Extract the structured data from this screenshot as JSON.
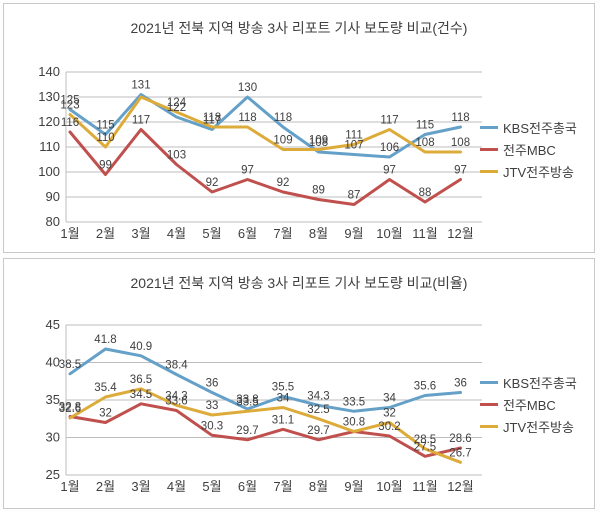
{
  "colors": {
    "kbs": "#64a0c8",
    "mbc": "#c0504d",
    "jtv": "#ddab39",
    "grid": "#bdbdbd",
    "axis_text": "#3f3f3f",
    "label_text": "#404040",
    "panel_border": "#c9c9c9"
  },
  "chart_data": [
    {
      "type": "line",
      "title": "2021년 전북 지역 방송 3사 리포트 기사 보도량 비교(건수)",
      "categories": [
        "1월",
        "2월",
        "3월",
        "4월",
        "5월",
        "6월",
        "7월",
        "8월",
        "9월",
        "10월",
        "11월",
        "12월"
      ],
      "ylim": [
        80,
        140
      ],
      "ytick_step": 10,
      "grid": true,
      "legend_position": "right",
      "series": [
        {
          "name": "KBS전주총국",
          "color_key": "kbs",
          "values": [
            125,
            115,
            131,
            122,
            117,
            130,
            118,
            108,
            107,
            106,
            115,
            118
          ],
          "labels": [
            "125",
            "115",
            "131",
            "122",
            "117",
            "130",
            "118",
            "108",
            "107",
            "106",
            "115",
            "118"
          ]
        },
        {
          "name": "전주MBC",
          "color_key": "mbc",
          "values": [
            116,
            99,
            117,
            103,
            92,
            97,
            92,
            89,
            87,
            97,
            88,
            97
          ],
          "labels": [
            "116",
            "99",
            "117",
            "103",
            "92",
            "97",
            "92",
            "89",
            "87",
            "97",
            "88",
            "97"
          ]
        },
        {
          "name": "JTV전주방송",
          "color_key": "jtv",
          "values": [
            123,
            110,
            130,
            124,
            118,
            118,
            109,
            109,
            111,
            117,
            108,
            108
          ],
          "labels": [
            "123",
            "110",
            "",
            "124",
            "118",
            "118",
            "109",
            "109",
            "111",
            "117",
            "108",
            "108"
          ]
        }
      ]
    },
    {
      "type": "line",
      "title": "2021년 전북 지역 방송 3사 리포트 기사 보도량 비교(비율)",
      "categories": [
        "1월",
        "2월",
        "3월",
        "4월",
        "5월",
        "6월",
        "7월",
        "8월",
        "9월",
        "10월",
        "11월",
        "12월"
      ],
      "ylim": [
        25,
        45
      ],
      "ytick_step": 5,
      "grid": true,
      "legend_position": "right",
      "series": [
        {
          "name": "KBS전주총국",
          "color_key": "kbs",
          "values": [
            38.5,
            41.8,
            40.9,
            38.4,
            36,
            33.8,
            35.5,
            34.3,
            33.5,
            34,
            35.6,
            36
          ],
          "labels": [
            "38.5",
            "41.8",
            "40.9",
            "38.4",
            "36",
            "33.8",
            "35.5",
            "34.3",
            "33.5",
            "34",
            "35.6",
            "36"
          ]
        },
        {
          "name": "전주MBC",
          "color_key": "mbc",
          "values": [
            32.8,
            32,
            34.5,
            33.6,
            30.3,
            29.7,
            31.1,
            29.7,
            30.8,
            30.2,
            27.5,
            28.6
          ],
          "labels": [
            "32.8",
            "32",
            "34.5",
            "33.6",
            "30.3",
            "29.7",
            "31.1",
            "29.7",
            "30.8",
            "30.2",
            "27.5",
            "28.6"
          ]
        },
        {
          "name": "JTV전주방송",
          "color_key": "jtv",
          "values": [
            32.6,
            35.4,
            36.5,
            34.3,
            33,
            33.5,
            34,
            32.5,
            30.8,
            32,
            28.5,
            26.7
          ],
          "labels": [
            "32.6",
            "35.4",
            "36.5",
            "34.3",
            "33",
            "33.5",
            "34",
            "32.5",
            "",
            "32",
            "28.5",
            "26.7"
          ]
        }
      ]
    }
  ]
}
